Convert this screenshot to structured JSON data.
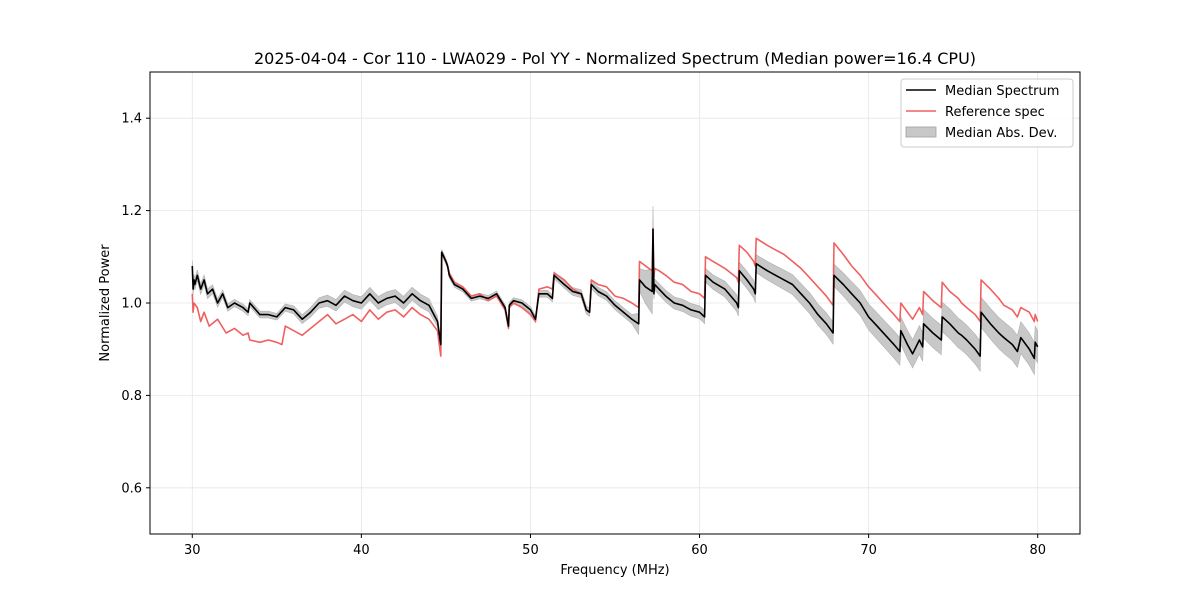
{
  "chart_data": {
    "type": "line",
    "title": "2025-04-04 - Cor 110 - LWA029 - Pol YY - Normalized Spectrum (Median power=16.4 CPU)",
    "xlabel": "Frequency (MHz)",
    "ylabel": "Normalized Power",
    "xlim": [
      27.5,
      82.5
    ],
    "ylim": [
      0.5,
      1.5
    ],
    "xticks": [
      30,
      40,
      50,
      60,
      70,
      80
    ],
    "xtick_labels": [
      "30",
      "40",
      "50",
      "60",
      "70",
      "80"
    ],
    "yticks": [
      0.6,
      0.8,
      1.0,
      1.2,
      1.4
    ],
    "ytick_labels": [
      "0.6",
      "0.8",
      "1.0",
      "1.2",
      "1.4"
    ],
    "grid": true,
    "legend_position": "top-right",
    "legend": [
      {
        "label": "Median Spectrum",
        "kind": "line",
        "color": "#000000"
      },
      {
        "label": "Reference spec",
        "kind": "line",
        "color": "#f06060"
      },
      {
        "label": "Median Abs. Dev.",
        "kind": "band",
        "color": "#c8c8c8"
      }
    ],
    "series": [
      {
        "name": "Median Spectrum",
        "color": "#000000",
        "x": [
          30.0,
          30.05,
          30.1,
          30.15,
          30.3,
          30.5,
          30.7,
          30.9,
          31.2,
          31.5,
          31.8,
          32.1,
          32.5,
          33.0,
          33.3,
          33.4,
          34.0,
          34.5,
          35.0,
          35.5,
          36.0,
          36.5,
          37.0,
          37.5,
          38.0,
          38.5,
          39.0,
          39.5,
          40.0,
          40.5,
          41.0,
          41.5,
          42.0,
          42.5,
          43.0,
          43.5,
          44.0,
          44.5,
          44.7,
          44.75,
          45.0,
          45.1,
          45.2,
          45.5,
          46.0,
          46.5,
          47.0,
          47.5,
          48.0,
          48.5,
          48.7,
          48.75,
          49.0,
          49.5,
          50.0,
          50.3,
          50.5,
          51.0,
          51.3,
          51.4,
          52.0,
          52.5,
          53.0,
          53.3,
          53.5,
          53.6,
          54.0,
          54.5,
          55.0,
          55.5,
          56.0,
          56.4,
          56.45,
          56.8,
          57.2,
          57.25,
          57.3,
          57.35,
          57.6,
          58.0,
          58.5,
          59.0,
          59.5,
          60.0,
          60.3,
          60.35,
          60.8,
          61.5,
          62.2,
          62.3,
          62.35,
          62.8,
          63.2,
          63.3,
          63.35,
          64.0,
          64.5,
          65.0,
          65.5,
          66.0,
          66.5,
          67.0,
          67.5,
          67.9,
          67.95,
          68.5,
          69.0,
          69.5,
          70.0,
          70.5,
          71.0,
          71.5,
          71.85,
          71.9,
          72.3,
          72.6,
          73.0,
          73.2,
          73.25,
          73.8,
          74.3,
          74.35,
          74.8,
          75.3,
          75.5,
          75.8,
          76.3,
          76.6,
          76.65,
          77.2,
          77.7,
          78.0,
          78.5,
          78.8,
          79.0,
          79.5,
          79.8,
          79.85,
          80.0
        ],
        "values": [
          1.08,
          1.03,
          1.05,
          1.04,
          1.06,
          1.03,
          1.05,
          1.02,
          1.03,
          1.0,
          1.02,
          0.99,
          1.0,
          0.99,
          0.98,
          1.0,
          0.975,
          0.975,
          0.97,
          0.99,
          0.985,
          0.965,
          0.98,
          1.0,
          1.005,
          0.995,
          1.015,
          1.005,
          1.0,
          1.02,
          1.0,
          1.01,
          1.015,
          1.0,
          1.02,
          1.005,
          0.995,
          0.96,
          0.91,
          1.11,
          1.09,
          1.08,
          1.06,
          1.04,
          1.03,
          1.01,
          1.015,
          1.01,
          1.02,
          0.99,
          0.95,
          0.995,
          1.005,
          1.0,
          0.985,
          0.965,
          1.02,
          1.02,
          1.01,
          1.06,
          1.04,
          1.025,
          1.02,
          0.985,
          0.98,
          1.04,
          1.025,
          1.015,
          0.995,
          0.98,
          0.965,
          0.955,
          1.05,
          1.035,
          1.025,
          1.16,
          1.02,
          1.04,
          1.03,
          1.015,
          1.0,
          0.995,
          0.985,
          0.98,
          0.97,
          1.06,
          1.045,
          1.03,
          1.0,
          0.99,
          1.07,
          1.05,
          1.03,
          1.02,
          1.085,
          1.07,
          1.06,
          1.05,
          1.04,
          1.02,
          1.0,
          0.975,
          0.955,
          0.935,
          1.06,
          1.04,
          1.02,
          1.0,
          0.97,
          0.95,
          0.93,
          0.91,
          0.895,
          0.94,
          0.91,
          0.89,
          0.92,
          0.905,
          0.955,
          0.935,
          0.92,
          0.97,
          0.955,
          0.935,
          0.93,
          0.92,
          0.9,
          0.885,
          0.98,
          0.955,
          0.935,
          0.925,
          0.91,
          0.895,
          0.925,
          0.9,
          0.88,
          0.915,
          0.905
        ]
      },
      {
        "name": "Reference spec",
        "color": "#f06060",
        "x": [
          30.0,
          30.05,
          30.1,
          30.3,
          30.5,
          30.7,
          31.0,
          31.5,
          32.0,
          32.5,
          33.0,
          33.3,
          33.4,
          34.0,
          34.5,
          35.0,
          35.3,
          35.5,
          36.0,
          36.5,
          37.0,
          37.5,
          38.0,
          38.5,
          39.0,
          39.5,
          40.0,
          40.5,
          41.0,
          41.5,
          42.0,
          42.5,
          43.0,
          43.5,
          44.0,
          44.5,
          44.7,
          44.75,
          45.0,
          45.1,
          45.2,
          45.5,
          46.0,
          46.5,
          47.0,
          47.5,
          48.0,
          48.5,
          48.7,
          48.75,
          49.0,
          49.5,
          50.0,
          50.3,
          50.5,
          51.0,
          51.3,
          51.4,
          52.0,
          52.5,
          53.0,
          53.3,
          53.5,
          53.6,
          54.0,
          54.5,
          55.0,
          55.5,
          56.0,
          56.4,
          56.45,
          57.0,
          57.2,
          57.25,
          57.3,
          57.35,
          57.6,
          58.0,
          58.5,
          59.0,
          59.5,
          60.0,
          60.3,
          60.35,
          60.8,
          61.5,
          62.2,
          62.3,
          62.35,
          62.8,
          63.2,
          63.3,
          63.35,
          64.0,
          64.5,
          65.0,
          65.5,
          66.0,
          66.5,
          67.0,
          67.5,
          67.9,
          67.95,
          68.5,
          69.0,
          69.5,
          70.0,
          70.5,
          71.0,
          71.5,
          71.85,
          71.9,
          72.3,
          72.6,
          73.0,
          73.2,
          73.25,
          73.8,
          74.3,
          74.35,
          74.8,
          75.3,
          75.5,
          75.8,
          76.3,
          76.6,
          76.65,
          77.2,
          77.7,
          78.0,
          78.5,
          78.8,
          79.0,
          79.5,
          79.8,
          79.85,
          80.0
        ],
        "values": [
          1.02,
          0.98,
          1.0,
          0.99,
          0.96,
          0.98,
          0.95,
          0.965,
          0.935,
          0.945,
          0.93,
          0.935,
          0.92,
          0.915,
          0.92,
          0.915,
          0.91,
          0.95,
          0.94,
          0.93,
          0.945,
          0.96,
          0.975,
          0.955,
          0.965,
          0.975,
          0.96,
          0.985,
          0.965,
          0.98,
          0.985,
          0.97,
          0.99,
          0.975,
          0.965,
          0.94,
          0.885,
          1.11,
          1.09,
          1.08,
          1.065,
          1.045,
          1.035,
          1.015,
          1.02,
          1.005,
          1.015,
          0.985,
          0.945,
          0.99,
          1.0,
          0.99,
          0.975,
          0.96,
          1.03,
          1.035,
          1.03,
          1.065,
          1.05,
          1.03,
          1.02,
          0.985,
          0.98,
          1.05,
          1.04,
          1.035,
          1.015,
          1.01,
          1.0,
          0.99,
          1.09,
          1.075,
          1.07,
          1.16,
          1.055,
          1.075,
          1.07,
          1.06,
          1.045,
          1.04,
          1.025,
          1.02,
          1.01,
          1.1,
          1.09,
          1.075,
          1.055,
          1.045,
          1.125,
          1.11,
          1.09,
          1.08,
          1.14,
          1.125,
          1.115,
          1.105,
          1.09,
          1.075,
          1.055,
          1.035,
          1.015,
          0.995,
          1.13,
          1.105,
          1.08,
          1.06,
          1.035,
          1.015,
          0.995,
          0.975,
          0.96,
          1.0,
          0.98,
          0.965,
          0.99,
          0.975,
          1.025,
          1.005,
          0.99,
          1.045,
          1.025,
          1.01,
          1.0,
          0.99,
          0.975,
          0.96,
          1.05,
          1.03,
          1.01,
          0.995,
          0.985,
          0.97,
          0.99,
          0.98,
          0.96,
          0.975,
          0.96
        ]
      }
    ],
    "mad_band": {
      "x": [
        30.0,
        32.0,
        35.0,
        38.0,
        41.0,
        44.0,
        44.7,
        44.75,
        48.0,
        52.0,
        56.0,
        57.25,
        57.3,
        60.0,
        62.0,
        64.0,
        66.0,
        68.0,
        70.0,
        72.0,
        74.0,
        76.0,
        78.0,
        80.0
      ],
      "half_width": [
        0.012,
        0.008,
        0.007,
        0.012,
        0.014,
        0.014,
        0.01,
        0.006,
        0.006,
        0.008,
        0.01,
        0.05,
        0.012,
        0.014,
        0.018,
        0.02,
        0.022,
        0.024,
        0.028,
        0.03,
        0.032,
        0.032,
        0.034,
        0.035
      ]
    }
  }
}
